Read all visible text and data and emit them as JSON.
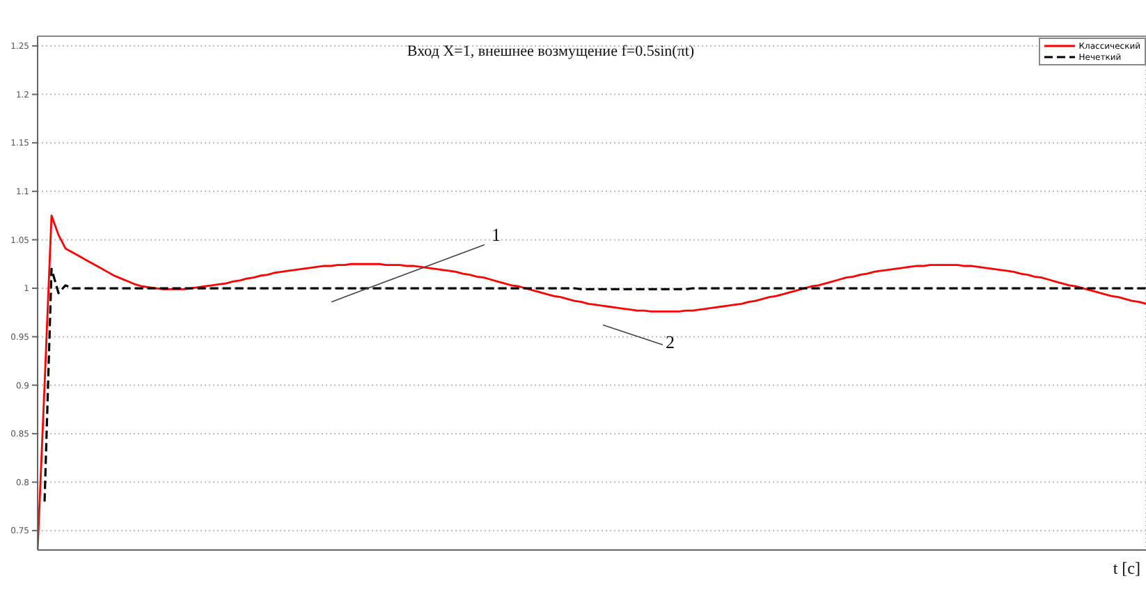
{
  "chart_data": {
    "type": "line",
    "title": "Вход X=1, внешнее возмущение f=0.5sin(πt)",
    "xlabel": "t [c]",
    "categories": [
      null,
      null,
      null,
      null,
      null,
      null,
      null,
      null,
      null,
      null,
      null,
      null,
      null,
      null,
      null,
      null,
      null,
      null,
      null,
      null,
      null,
      null,
      null,
      null,
      null,
      null,
      null,
      null,
      null,
      null,
      null,
      null,
      null,
      null,
      null,
      null,
      null,
      null,
      null,
      null,
      null,
      null,
      null,
      null,
      null,
      null,
      null,
      null,
      null,
      null,
      null,
      null,
      null,
      null,
      null,
      null,
      null,
      null,
      null,
      null,
      null,
      null,
      null,
      null,
      null,
      null,
      null,
      null,
      null,
      null,
      null,
      null,
      null,
      null,
      null,
      null,
      null,
      null,
      null,
      null,
      null,
      null,
      null,
      null,
      null,
      null,
      null,
      null,
      null,
      null,
      null,
      null,
      null,
      null,
      null,
      null,
      null,
      null,
      null,
      null,
      null,
      null,
      null,
      null,
      null,
      null,
      null,
      null,
      null,
      null,
      null,
      null,
      null,
      null,
      null,
      null,
      null,
      null,
      null,
      null,
      null,
      null,
      null,
      null,
      null,
      null,
      null,
      null,
      null,
      null,
      null,
      null,
      null,
      null,
      null,
      null,
      null,
      null,
      null,
      null,
      null,
      null,
      null,
      null,
      null,
      null,
      null,
      null,
      null,
      null,
      null,
      null,
      null,
      null,
      null,
      null,
      null,
      null,
      null,
      null
    ],
    "series": [
      {
        "name": "Классический",
        "color": "#ff0000",
        "line_style": "solid",
        "values": [
          0.73,
          0.9,
          1.075,
          1.055,
          1.041,
          1.037,
          1.033,
          1.029,
          1.025,
          1.021,
          1.017,
          1.013,
          1.01,
          1.007,
          1.004,
          1.002,
          1.001,
          1.0,
          0.999,
          0.999,
          0.999,
          0.999,
          1.0,
          1.001,
          1.002,
          1.003,
          1.004,
          1.005,
          1.007,
          1.008,
          1.01,
          1.011,
          1.013,
          1.014,
          1.016,
          1.017,
          1.018,
          1.019,
          1.02,
          1.021,
          1.022,
          1.023,
          1.023,
          1.024,
          1.024,
          1.025,
          1.025,
          1.025,
          1.025,
          1.025,
          1.024,
          1.024,
          1.024,
          1.023,
          1.023,
          1.022,
          1.021,
          1.02,
          1.019,
          1.018,
          1.017,
          1.015,
          1.014,
          1.012,
          1.011,
          1.009,
          1.007,
          1.005,
          1.003,
          1.002,
          1.0,
          0.998,
          0.996,
          0.994,
          0.992,
          0.991,
          0.989,
          0.987,
          0.986,
          0.984,
          0.983,
          0.982,
          0.981,
          0.98,
          0.979,
          0.978,
          0.977,
          0.977,
          0.976,
          0.976,
          0.976,
          0.976,
          0.976,
          0.977,
          0.977,
          0.978,
          0.979,
          0.98,
          0.981,
          0.982,
          0.983,
          0.984,
          0.986,
          0.987,
          0.989,
          0.991,
          0.992,
          0.994,
          0.996,
          0.998,
          1.0,
          1.002,
          1.003,
          1.005,
          1.007,
          1.009,
          1.011,
          1.012,
          1.014,
          1.015,
          1.017,
          1.018,
          1.019,
          1.02,
          1.021,
          1.022,
          1.023,
          1.023,
          1.024,
          1.024,
          1.024,
          1.024,
          1.024,
          1.023,
          1.023,
          1.022,
          1.021,
          1.02,
          1.019,
          1.018,
          1.017,
          1.015,
          1.014,
          1.012,
          1.011,
          1.009,
          1.007,
          1.005,
          1.003,
          1.002,
          1.0,
          0.998,
          0.996,
          0.994,
          0.992,
          0.991,
          0.989,
          0.987,
          0.986,
          0.984
        ]
      },
      {
        "name": "Нечеткий",
        "color": "#000000",
        "line_style": "dashed",
        "values": [
          null,
          0.78,
          1.02,
          0.995,
          1.003,
          1.0,
          1.0,
          1.0,
          1.0,
          1.0,
          1.0,
          1.0,
          1.0,
          1.0,
          1.0,
          1.0,
          1.0,
          1.0,
          1.0,
          1.0,
          1.0,
          1.0,
          1.0,
          1.0,
          1.0,
          1.0,
          1.0,
          1.0,
          1.0,
          1.0,
          1.0,
          1.0,
          1.0,
          1.0,
          1.0,
          1.0,
          1.0,
          1.0,
          1.0,
          1.0,
          1.0,
          1.0,
          1.0,
          1.0,
          1.0,
          1.0,
          1.0,
          1.0,
          1.0,
          1.0,
          1.0,
          1.0,
          1.0,
          1.0,
          1.0,
          1.0,
          1.0,
          1.0,
          1.0,
          1.0,
          1.0,
          1.0,
          1.0,
          1.0,
          1.0,
          1.0,
          1.0,
          1.0,
          1.0,
          1.0,
          1.0,
          1.0,
          1.0,
          1.0,
          1.0,
          1.0,
          1.0,
          1.0,
          0.999,
          0.999,
          0.999,
          0.999,
          0.999,
          0.999,
          0.999,
          0.999,
          0.999,
          0.999,
          0.999,
          0.999,
          0.999,
          0.999,
          0.999,
          0.999,
          1.0,
          1.0,
          1.0,
          1.0,
          1.0,
          1.0,
          1.0,
          1.0,
          1.0,
          1.0,
          1.0,
          1.0,
          1.0,
          1.0,
          1.0,
          1.0,
          1.0,
          1.0,
          1.0,
          1.0,
          1.0,
          1.0,
          1.0,
          1.0,
          1.0,
          1.0,
          1.0,
          1.0,
          1.0,
          1.0,
          1.0,
          1.0,
          1.0,
          1.0,
          1.0,
          1.0,
          1.0,
          1.0,
          1.0,
          1.0,
          1.0,
          1.0,
          1.0,
          1.0,
          1.0,
          1.0,
          1.0,
          1.0,
          1.0,
          1.0,
          1.0,
          1.0,
          1.0,
          1.0,
          1.0,
          1.0,
          1.0,
          1.0,
          1.0,
          1.0,
          1.0,
          1.0,
          1.0,
          1.0,
          1.0,
          1.0
        ]
      }
    ],
    "ylim": [
      0.73,
      1.26
    ],
    "yticks": [
      0.75,
      0.8,
      0.85,
      0.9,
      0.95,
      1,
      1.05,
      1.1,
      1.15,
      1.2,
      1.25
    ],
    "grid": true,
    "legend": "top right",
    "tick_labels": "y",
    "annotations": [
      "1",
      "2"
    ]
  }
}
